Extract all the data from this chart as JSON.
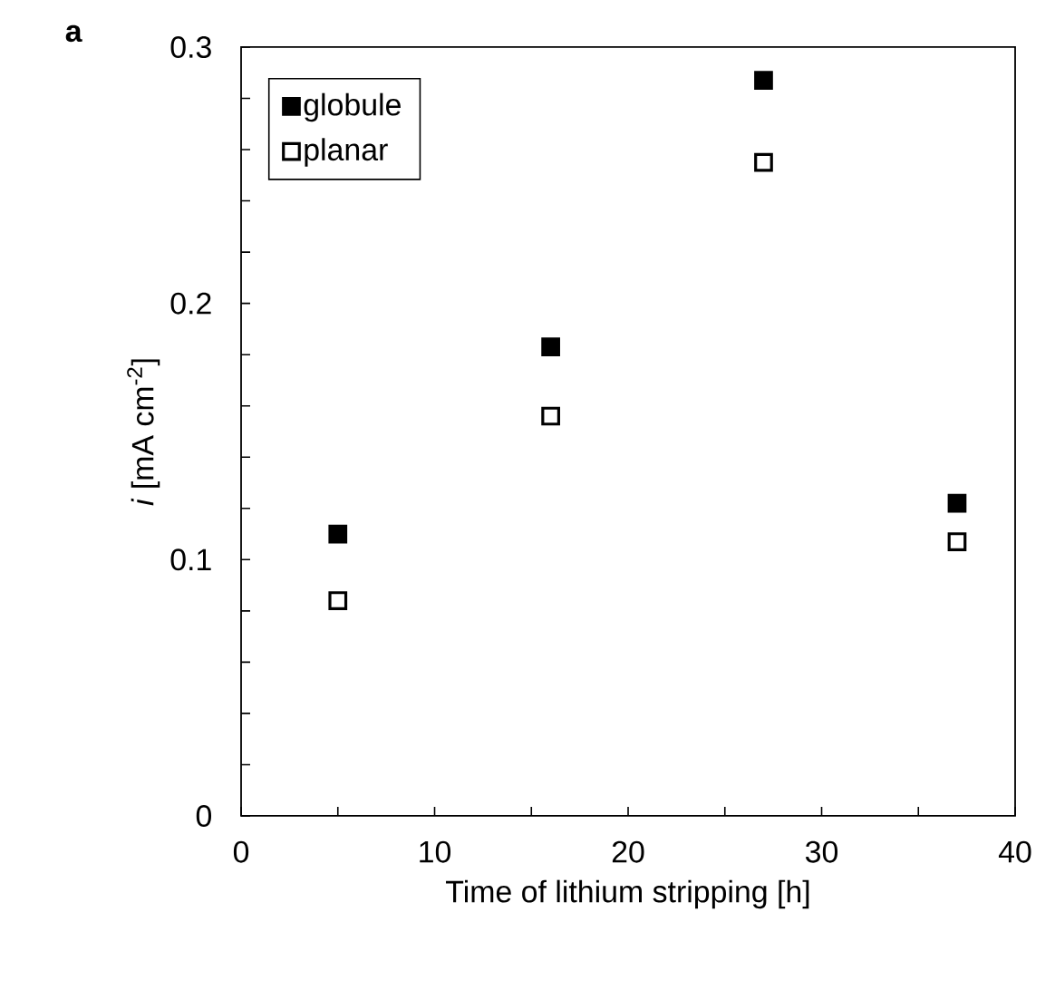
{
  "chart_data": {
    "type": "scatter",
    "xlabel": "Time of lithium stripping [h]",
    "ylabel": "*i* [mA cm$^{-2}$]",
    "annotations": [
      "a"
    ],
    "x": [
      5,
      16,
      27,
      37
    ],
    "series": [
      {
        "name": "globule",
        "color": "#000000",
        "values": [
          0.11,
          0.183,
          0.287,
          0.122
        ]
      },
      {
        "name": "planar",
        "color": "#000000",
        "values": [
          0.084,
          0.156,
          0.255,
          0.107
        ]
      }
    ],
    "xlim": [
      0,
      40
    ],
    "xticks": [
      0,
      10,
      20,
      30,
      40
    ],
    "ylim": [
      0,
      0.3
    ],
    "yticks": [
      0,
      0.1,
      0.2,
      0.3
    ],
    "marker": "square",
    "legend": "top left"
  }
}
